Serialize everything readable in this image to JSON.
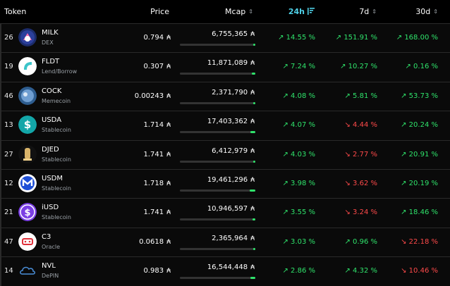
{
  "header": {
    "token": "Token",
    "price": "Price",
    "mcap": "Mcap",
    "d24": "24h",
    "d7": "7d",
    "d30": "30d",
    "sort_glyph": "⌃⌄"
  },
  "currency_symbol": "₳",
  "rows": [
    {
      "rank": "26",
      "name": "MILK",
      "category": "DEX",
      "price": "0.794",
      "mcap": "6,755,365",
      "mcap_fraction": 0.35,
      "d24": "↗ 14.55 %",
      "d24_dir": "up",
      "d7": "↗ 151.91 %",
      "d7_dir": "up",
      "d30": "↗ 168.00 %",
      "d30_dir": "up",
      "logo": "milk-logo-icon"
    },
    {
      "rank": "19",
      "name": "FLDT",
      "category": "Lend/Borrow",
      "price": "0.307",
      "mcap": "11,871,089",
      "mcap_fraction": 0.61,
      "d24": "↗ 7.24 %",
      "d24_dir": "up",
      "d7": "↗ 10.27 %",
      "d7_dir": "up",
      "d30": "↗ 0.16 %",
      "d30_dir": "up",
      "logo": "fldt-logo-icon"
    },
    {
      "rank": "46",
      "name": "COCK",
      "category": "Memecoin",
      "price": "0.00243",
      "mcap": "2,371,790",
      "mcap_fraction": 0.12,
      "d24": "↗ 4.08 %",
      "d24_dir": "up",
      "d7": "↗ 5.81 %",
      "d7_dir": "up",
      "d30": "↗ 53.73 %",
      "d30_dir": "up",
      "logo": "cock-logo-icon"
    },
    {
      "rank": "13",
      "name": "USDA",
      "category": "Stablecoin",
      "price": "1.714",
      "mcap": "17,403,362",
      "mcap_fraction": 0.89,
      "d24": "↗ 4.07 %",
      "d24_dir": "up",
      "d7": "↘ 4.44 %",
      "d7_dir": "down",
      "d30": "↗ 20.24 %",
      "d30_dir": "up",
      "logo": "usda-logo-icon"
    },
    {
      "rank": "27",
      "name": "DJED",
      "category": "Stablecoin",
      "price": "1.741",
      "mcap": "6,412,979",
      "mcap_fraction": 0.33,
      "d24": "↗ 4.03 %",
      "d24_dir": "up",
      "d7": "↘ 2.77 %",
      "d7_dir": "down",
      "d30": "↗ 20.91 %",
      "d30_dir": "up",
      "logo": "djed-logo-icon"
    },
    {
      "rank": "12",
      "name": "USDM",
      "category": "Stablecoin",
      "price": "1.718",
      "mcap": "19,461,296",
      "mcap_fraction": 1.0,
      "d24": "↗ 3.98 %",
      "d24_dir": "up",
      "d7": "↘ 3.62 %",
      "d7_dir": "down",
      "d30": "↗ 20.19 %",
      "d30_dir": "up",
      "logo": "usdm-logo-icon"
    },
    {
      "rank": "21",
      "name": "iUSD",
      "category": "Stablecoin",
      "price": "1.741",
      "mcap": "10,946,597",
      "mcap_fraction": 0.56,
      "d24": "↗ 3.55 %",
      "d24_dir": "up",
      "d7": "↘ 3.24 %",
      "d7_dir": "down",
      "d30": "↗ 18.46 %",
      "d30_dir": "up",
      "logo": "iusd-logo-icon"
    },
    {
      "rank": "47",
      "name": "C3",
      "category": "Oracle",
      "price": "0.0618",
      "mcap": "2,365,964",
      "mcap_fraction": 0.12,
      "d24": "↗ 3.03 %",
      "d24_dir": "up",
      "d7": "↗ 0.96 %",
      "d7_dir": "up",
      "d30": "↘ 22.18 %",
      "d30_dir": "down",
      "logo": "c3-logo-icon"
    },
    {
      "rank": "14",
      "name": "NVL",
      "category": "DePIN",
      "price": "0.983",
      "mcap": "16,544,448",
      "mcap_fraction": 0.85,
      "d24": "↗ 2.86 %",
      "d24_dir": "up",
      "d7": "↗ 4.32 %",
      "d7_dir": "up",
      "d30": "↘ 10.46 %",
      "d30_dir": "down",
      "logo": "nvl-logo-icon"
    }
  ],
  "colors": {
    "up": "#2fe36b",
    "down": "#ff4a4a",
    "active_header": "#4fd1e8"
  }
}
